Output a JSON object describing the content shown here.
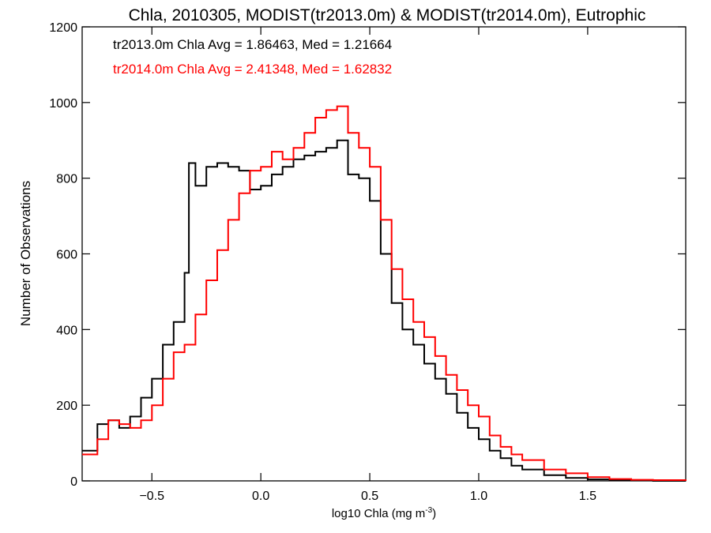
{
  "chart_data": {
    "type": "line",
    "title": "Chla, 2010305, MODIST(tr2013.0m) & MODIST(tr2014.0m), Eutrophic",
    "xlabel": "log10 Chla (mg m",
    "xlabel_sup": "-3",
    "xlabel_end": ")",
    "ylabel": "Number of Observations",
    "xlim": [
      -0.82,
      1.95
    ],
    "ylim": [
      0,
      1200
    ],
    "xticks": [
      -0.5,
      0.0,
      0.5,
      1.0,
      1.5
    ],
    "xtick_labels": [
      "−0.5",
      "0.0",
      "0.5",
      "1.0",
      "1.5"
    ],
    "yticks": [
      0,
      200,
      400,
      600,
      800,
      1000,
      1200
    ],
    "ytick_labels": [
      "0",
      "200",
      "400",
      "600",
      "800",
      "1000",
      "1200"
    ],
    "grid": false,
    "step_style": "histogram",
    "annotations": [
      {
        "text": "tr2013.0m Chla Avg = 1.86463, Med = 1.21664",
        "color": "#000000"
      },
      {
        "text": "tr2014.0m Chla Avg = 2.41348, Med = 1.62832",
        "color": "#ff0000"
      }
    ],
    "series": [
      {
        "color": "#000000",
        "x": [
          -0.82,
          -0.75,
          -0.7,
          -0.65,
          -0.6,
          -0.55,
          -0.5,
          -0.45,
          -0.4,
          -0.35,
          -0.33,
          -0.3,
          -0.25,
          -0.2,
          -0.15,
          -0.1,
          -0.05,
          0.0,
          0.05,
          0.1,
          0.15,
          0.2,
          0.25,
          0.3,
          0.35,
          0.4,
          0.45,
          0.5,
          0.55,
          0.6,
          0.65,
          0.7,
          0.75,
          0.8,
          0.85,
          0.9,
          0.95,
          1.0,
          1.05,
          1.1,
          1.15,
          1.2,
          1.3,
          1.4,
          1.5,
          1.6,
          1.7,
          1.8,
          1.95
        ],
        "y": [
          80,
          150,
          160,
          140,
          170,
          220,
          270,
          360,
          420,
          550,
          840,
          780,
          830,
          840,
          830,
          820,
          770,
          780,
          810,
          830,
          850,
          860,
          870,
          880,
          900,
          810,
          800,
          740,
          600,
          470,
          400,
          360,
          310,
          270,
          230,
          180,
          140,
          110,
          80,
          60,
          40,
          30,
          15,
          8,
          4,
          2,
          1,
          0,
          0
        ]
      },
      {
        "color": "#ff0000",
        "x": [
          -0.82,
          -0.75,
          -0.7,
          -0.65,
          -0.6,
          -0.55,
          -0.5,
          -0.45,
          -0.4,
          -0.35,
          -0.3,
          -0.25,
          -0.2,
          -0.15,
          -0.1,
          -0.05,
          0.0,
          0.05,
          0.1,
          0.15,
          0.2,
          0.25,
          0.3,
          0.35,
          0.4,
          0.45,
          0.5,
          0.55,
          0.6,
          0.65,
          0.7,
          0.75,
          0.8,
          0.85,
          0.9,
          0.95,
          1.0,
          1.05,
          1.1,
          1.15,
          1.2,
          1.3,
          1.4,
          1.5,
          1.6,
          1.7,
          1.8,
          1.95
        ],
        "y": [
          70,
          110,
          160,
          150,
          140,
          160,
          200,
          270,
          340,
          360,
          440,
          530,
          610,
          690,
          760,
          820,
          830,
          870,
          850,
          880,
          920,
          960,
          980,
          990,
          920,
          880,
          830,
          690,
          560,
          480,
          420,
          380,
          330,
          280,
          240,
          200,
          170,
          120,
          90,
          70,
          55,
          30,
          20,
          10,
          5,
          3,
          2,
          0
        ]
      }
    ]
  }
}
